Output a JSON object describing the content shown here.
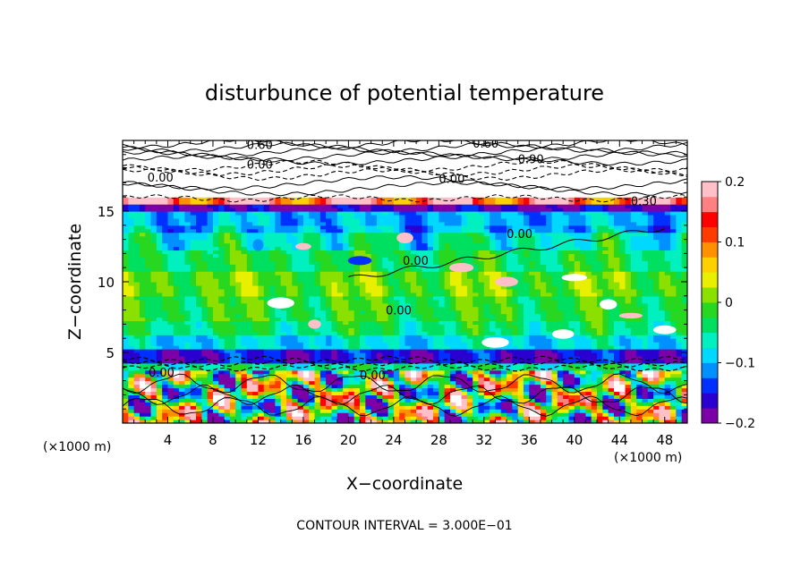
{
  "chart_data": {
    "type": "heatmap",
    "title": "disturbunce of potential temperature",
    "xlabel": "X−coordinate",
    "ylabel": "Z−coordinate",
    "x_unit_left": "(×1000 m)",
    "x_unit_right": "(×1000 m)",
    "x_ticks": [
      "4",
      "8",
      "12",
      "16",
      "20",
      "24",
      "28",
      "32",
      "36",
      "40",
      "44",
      "48"
    ],
    "y_ticks": [
      "5",
      "10",
      "15"
    ],
    "xlim": [
      0,
      50
    ],
    "ylim": [
      0,
      20
    ],
    "colorbar": {
      "range": [
        -0.2,
        0.2
      ],
      "tick_labels": [
        "0.2",
        "0.1",
        "0",
        "−0.1",
        "−0.2"
      ],
      "tick_values": [
        0.2,
        0.1,
        0,
        -0.1,
        -0.2
      ],
      "colors": [
        "#7b00a8",
        "#2a00d0",
        "#0030ff",
        "#0090ff",
        "#00d8ff",
        "#00f0c0",
        "#00e060",
        "#28d820",
        "#8ce000",
        "#e8f000",
        "#ffd000",
        "#ff9000",
        "#ff3c00",
        "#ff0000",
        "#ff8080",
        "#ffc0c8"
      ]
    },
    "contour_labels": [
      "0.60",
      "0.60",
      "0.00",
      "0.90",
      "0.00",
      "0.30",
      "0.00",
      "0.00",
      "0.00",
      "0.00",
      "0.00",
      "0.00"
    ],
    "footer": "CONTOUR INTERVAL = 3.000E−01",
    "bands_z": [
      {
        "z0": 0.0,
        "z1": 3.8,
        "v": 0.05
      },
      {
        "z0": 3.8,
        "z1": 4.2,
        "v": -0.05
      },
      {
        "z0": 4.2,
        "z1": 5.2,
        "v": -0.16
      },
      {
        "z0": 5.2,
        "z1": 6.2,
        "v": -0.08
      },
      {
        "z0": 6.2,
        "z1": 7.2,
        "v": -0.04
      },
      {
        "z0": 7.2,
        "z1": 9.0,
        "v": -0.02
      },
      {
        "z0": 9.0,
        "z1": 10.8,
        "v": 0.0
      },
      {
        "z0": 10.8,
        "z1": 12.2,
        "v": -0.03
      },
      {
        "z0": 12.2,
        "z1": 13.6,
        "v": -0.06
      },
      {
        "z0": 13.6,
        "z1": 15.0,
        "v": -0.1
      },
      {
        "z0": 15.0,
        "z1": 15.5,
        "v": -0.18
      },
      {
        "z0": 15.5,
        "z1": 18.0,
        "v": 0.3
      },
      {
        "z0": 18.0,
        "z1": 20.0,
        "v": 0.3
      }
    ]
  }
}
